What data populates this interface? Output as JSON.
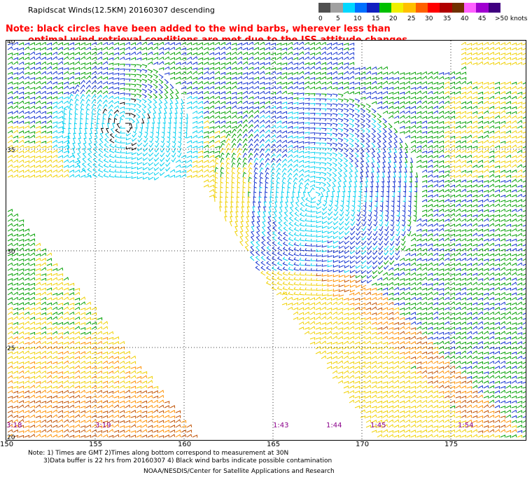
{
  "header": {
    "title": "Rapidscat Winds(12.5KM) 20160307 descending",
    "note_line1": "Note: black circles have been added to the wind barbs, wherever less than",
    "note_line2": "optimal wind retrieval conditions are met due to the ISS attitude changes"
  },
  "colorbar": {
    "ticks": [
      "0",
      "5",
      "10",
      "15",
      "20",
      "25",
      "30",
      "35",
      "40",
      "45",
      ">50 knots"
    ],
    "colors": [
      "#505050",
      "#a0a0a0",
      "#00d8ff",
      "#0070ff",
      "#1020c0",
      "#00c000",
      "#f0f000",
      "#ffc000",
      "#ff6000",
      "#ff0000",
      "#b00000",
      "#703000",
      "#ff60ff",
      "#a000d0",
      "#400080"
    ]
  },
  "map": {
    "lat_labels": [
      "40",
      "35",
      "30",
      "25",
      "20"
    ],
    "lon_labels": [
      "150",
      "155",
      "160",
      "165",
      "170",
      "175"
    ],
    "time_labels": [
      "3:18",
      "3:19",
      "1:43",
      "1:44",
      "1:45",
      "1:54"
    ],
    "barb_colors": {
      "light_blue": "#00d0f0",
      "blue": "#1030d0",
      "green": "#00a000",
      "yellow": "#f0d000",
      "orange": "#ff9000",
      "brown": "#c05000",
      "black": "#000000"
    }
  },
  "footer": {
    "note_line1": "Note: 1) Times are GMT 2)Times along bottom correspond to measurement at 30N",
    "note_line2": "3)Data buffer is 22 hrs from 20160307 4) Black wind barbs indicate possible contamination",
    "credit": "NOAA/NESDIS/Center for Satellite Applications and Research"
  }
}
